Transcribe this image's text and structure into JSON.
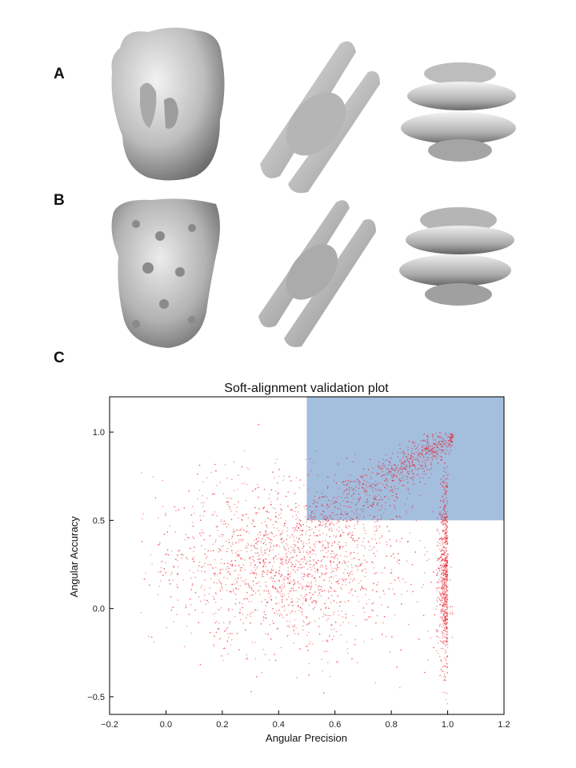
{
  "figure": {
    "panel_labels": {
      "a": "A",
      "b": "B",
      "c": "C"
    },
    "row_a": {
      "views": [
        "side-view",
        "diagonal-view",
        "top-view"
      ],
      "style": "smooth low-resolution density map"
    },
    "row_b": {
      "views": [
        "side-view",
        "diagonal-view",
        "top-view"
      ],
      "style": "high-resolution density map"
    },
    "colors": {
      "surface": "#b8b8b8",
      "surface_dark": "#7a7a7a",
      "points": "#e8202a",
      "region": "#a4bede"
    }
  },
  "chart_data": {
    "type": "scatter",
    "title": "Soft-alignment validation plot",
    "xlabel": "Angular Precision",
    "ylabel": "Angular Accuracy",
    "xlim": [
      -0.2,
      1.2
    ],
    "ylim": [
      -0.6,
      1.2
    ],
    "xticks": [
      "−0.2",
      "0.0",
      "0.2",
      "0.4",
      "0.6",
      "0.8",
      "1.0",
      "1.2"
    ],
    "xtick_values": [
      -0.2,
      0.0,
      0.2,
      0.4,
      0.6,
      0.8,
      1.0,
      1.2
    ],
    "yticks": [
      "−0.5",
      "0.0",
      "0.5",
      "1.0"
    ],
    "ytick_values": [
      -0.5,
      0.0,
      0.5,
      1.0
    ],
    "grid": false,
    "highlight_region": {
      "x": [
        0.5,
        1.2
      ],
      "y": [
        0.5,
        1.2
      ],
      "color": "#a4bede"
    },
    "series": [
      {
        "marker_color": "#e8202a",
        "point_count_approx": 9000,
        "distribution": {
          "dense_cluster_center": [
            0.4,
            0.25
          ],
          "vertical_band_at_x": 1.0,
          "upper_ridge": "points converge toward (1.0, 1.0)"
        }
      }
    ]
  }
}
